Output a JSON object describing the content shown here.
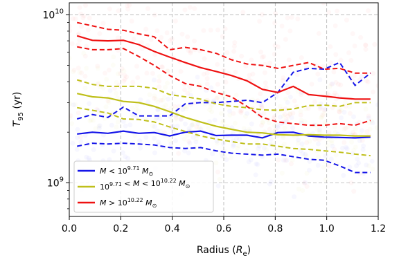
{
  "chart_data": {
    "type": "line",
    "xlabel": "Radius (R_e)",
    "ylabel": "T_95 (yr)",
    "xlim": [
      0.0,
      1.2
    ],
    "ylim": [
      630000000,
      11800000000
    ],
    "yscale": "log",
    "grid": true,
    "legend_placement": "lower-left",
    "x_ticks": [
      0.0,
      0.2,
      0.4,
      0.6,
      0.8,
      1.0,
      1.2
    ],
    "x_tick_labels": [
      "0.0",
      "0.2",
      "0.4",
      "0.6",
      "0.8",
      "1.0",
      "1.2"
    ],
    "y_ticks": [
      1000000000,
      10000000000
    ],
    "y_tick_labels": [
      {
        "base": "10",
        "exp": "9"
      },
      {
        "base": "10",
        "exp": "10"
      }
    ],
    "series": [
      {
        "key": "low",
        "legend_prefix": "M < 10",
        "legend_exp": "9.71",
        "legend_suffix": "M",
        "legend_sub": "⊙",
        "color": "#1515e8",
        "x": [
          0.03,
          0.09,
          0.15,
          0.21,
          0.27,
          0.33,
          0.39,
          0.45,
          0.51,
          0.57,
          0.63,
          0.69,
          0.75,
          0.81,
          0.87,
          0.93,
          0.99,
          1.05,
          1.11,
          1.17
        ],
        "median": [
          1950000000.0,
          2000000000.0,
          1970000000.0,
          2030000000.0,
          1970000000.0,
          1990000000.0,
          1900000000.0,
          2000000000.0,
          2030000000.0,
          1910000000.0,
          1920000000.0,
          1920000000.0,
          1850000000.0,
          1990000000.0,
          2000000000.0,
          1900000000.0,
          1870000000.0,
          1860000000.0,
          1850000000.0,
          1870000000.0
        ],
        "p16": [
          1650000000.0,
          1720000000.0,
          1700000000.0,
          1720000000.0,
          1700000000.0,
          1680000000.0,
          1620000000.0,
          1600000000.0,
          1620000000.0,
          1550000000.0,
          1500000000.0,
          1480000000.0,
          1460000000.0,
          1480000000.0,
          1430000000.0,
          1380000000.0,
          1360000000.0,
          1260000000.0,
          1150000000.0,
          1150000000.0
        ],
        "p84": [
          2400000000.0,
          2550000000.0,
          2450000000.0,
          2820000000.0,
          2500000000.0,
          2500000000.0,
          2500000000.0,
          2950000000.0,
          3000000000.0,
          3000000000.0,
          3050000000.0,
          3100000000.0,
          3000000000.0,
          3450000000.0,
          4550000000.0,
          4800000000.0,
          4750000000.0,
          5200000000.0,
          3800000000.0,
          4500000000.0
        ]
      },
      {
        "key": "mid",
        "legend_prefix": "10",
        "legend_exp": "9.71",
        "legend_mid": " < M < 10",
        "legend_exp2": "10.22",
        "legend_suffix": "M",
        "legend_sub": "⊙",
        "color": "#bfbf1a",
        "x": [
          0.03,
          0.09,
          0.15,
          0.21,
          0.27,
          0.33,
          0.39,
          0.45,
          0.51,
          0.57,
          0.63,
          0.69,
          0.75,
          0.81,
          0.87,
          0.93,
          0.99,
          1.05,
          1.11,
          1.17
        ],
        "median": [
          3400000000.0,
          3250000000.0,
          3200000000.0,
          3050000000.0,
          3000000000.0,
          2850000000.0,
          2650000000.0,
          2450000000.0,
          2300000000.0,
          2170000000.0,
          2080000000.0,
          2000000000.0,
          1980000000.0,
          1930000000.0,
          1920000000.0,
          1930000000.0,
          1920000000.0,
          1920000000.0,
          1900000000.0,
          1900000000.0
        ],
        "p16": [
          2800000000.0,
          2700000000.0,
          2600000000.0,
          2400000000.0,
          2380000000.0,
          2300000000.0,
          2150000000.0,
          2020000000.0,
          1900000000.0,
          1820000000.0,
          1760000000.0,
          1700000000.0,
          1700000000.0,
          1650000000.0,
          1600000000.0,
          1580000000.0,
          1550000000.0,
          1520000000.0,
          1480000000.0,
          1450000000.0
        ],
        "p84": [
          4100000000.0,
          3850000000.0,
          3750000000.0,
          3750000000.0,
          3750000000.0,
          3650000000.0,
          3350000000.0,
          3250000000.0,
          3150000000.0,
          2950000000.0,
          2850000000.0,
          2800000000.0,
          2720000000.0,
          2700000000.0,
          2750000000.0,
          2880000000.0,
          2900000000.0,
          2850000000.0,
          3000000000.0,
          3000000000.0
        ]
      },
      {
        "key": "high",
        "legend_prefix": "M > 10",
        "legend_exp": "10.22",
        "legend_suffix": "M",
        "legend_sub": "⊙",
        "color": "#ee1111",
        "x": [
          0.03,
          0.09,
          0.15,
          0.21,
          0.27,
          0.33,
          0.39,
          0.45,
          0.51,
          0.57,
          0.63,
          0.69,
          0.75,
          0.81,
          0.87,
          0.93,
          0.99,
          1.05,
          1.11,
          1.17
        ],
        "median": [
          7500000000.0,
          7050000000.0,
          7000000000.0,
          7050000000.0,
          6650000000.0,
          6050000000.0,
          5600000000.0,
          5200000000.0,
          4850000000.0,
          4600000000.0,
          4350000000.0,
          4050000000.0,
          3600000000.0,
          3450000000.0,
          3750000000.0,
          3350000000.0,
          3280000000.0,
          3200000000.0,
          3150000000.0,
          3150000000.0
        ],
        "p16": [
          6450000000.0,
          6200000000.0,
          6200000000.0,
          6300000000.0,
          5650000000.0,
          5000000000.0,
          4350000000.0,
          3900000000.0,
          3750000000.0,
          3450000000.0,
          3250000000.0,
          2850000000.0,
          2450000000.0,
          2300000000.0,
          2250000000.0,
          2200000000.0,
          2200000000.0,
          2250000000.0,
          2200000000.0,
          2350000000.0
        ],
        "p84": [
          9000000000.0,
          8600000000.0,
          8200000000.0,
          8100000000.0,
          7700000000.0,
          7400000000.0,
          6200000000.0,
          6400000000.0,
          6200000000.0,
          5900000000.0,
          5400000000.0,
          5100000000.0,
          5000000000.0,
          4800000000.0,
          5000000000.0,
          5200000000.0,
          4750000000.0,
          4800000000.0,
          4500000000.0,
          4500000000.0
        ]
      }
    ]
  }
}
